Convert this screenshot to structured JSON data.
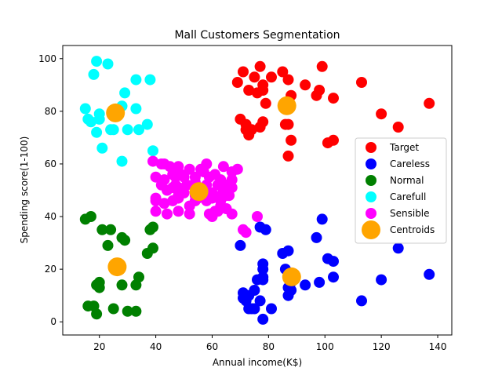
{
  "chart_data": {
    "type": "scatter",
    "title": "Mall Customers Segmentation",
    "xlabel": "Annual income(K$)",
    "ylabel": "Spending score(1-100)",
    "xlim": [
      7,
      145
    ],
    "ylim": [
      -5,
      105
    ],
    "xticks": [
      20,
      40,
      60,
      80,
      100,
      120,
      140
    ],
    "yticks": [
      0,
      20,
      40,
      60,
      80,
      100
    ],
    "grid": false,
    "legend": "right",
    "series": [
      {
        "name": "Target",
        "color": "#ff0000",
        "points": [
          [
            69,
            91
          ],
          [
            71,
            95
          ],
          [
            72,
            75
          ],
          [
            73,
            71
          ],
          [
            73,
            88
          ],
          [
            74,
            73
          ],
          [
            75,
            93
          ],
          [
            76,
            87
          ],
          [
            77,
            97
          ],
          [
            77,
            74
          ],
          [
            78,
            90
          ],
          [
            78,
            88
          ],
          [
            78,
            76
          ],
          [
            79,
            83
          ],
          [
            81,
            93
          ],
          [
            85,
            95
          ],
          [
            86,
            75
          ],
          [
            87,
            92
          ],
          [
            87,
            63
          ],
          [
            87,
            75
          ],
          [
            88,
            86
          ],
          [
            88,
            69
          ],
          [
            93,
            90
          ],
          [
            97,
            86
          ],
          [
            98,
            88
          ],
          [
            99,
            97
          ],
          [
            101,
            68
          ],
          [
            103,
            85
          ],
          [
            103,
            69
          ],
          [
            113,
            91
          ],
          [
            120,
            79
          ],
          [
            126,
            74
          ],
          [
            137,
            83
          ],
          [
            70,
            77
          ],
          [
            72,
            73
          ]
        ]
      },
      {
        "name": "Careless",
        "color": "#0000ff",
        "points": [
          [
            70,
            29
          ],
          [
            71,
            11
          ],
          [
            71,
            9
          ],
          [
            72,
            8
          ],
          [
            73,
            5
          ],
          [
            73,
            10
          ],
          [
            74,
            5
          ],
          [
            75,
            12
          ],
          [
            76,
            16
          ],
          [
            77,
            8
          ],
          [
            77,
            36
          ],
          [
            78,
            1
          ],
          [
            78,
            16
          ],
          [
            78,
            22
          ],
          [
            78,
            17
          ],
          [
            78,
            20
          ],
          [
            79,
            35
          ],
          [
            81,
            5
          ],
          [
            85,
            26
          ],
          [
            86,
            20
          ],
          [
            87,
            27
          ],
          [
            87,
            13
          ],
          [
            87,
            10
          ],
          [
            88,
            15
          ],
          [
            88,
            12
          ],
          [
            93,
            14
          ],
          [
            97,
            32
          ],
          [
            98,
            15
          ],
          [
            99,
            39
          ],
          [
            101,
            24
          ],
          [
            103,
            17
          ],
          [
            103,
            23
          ],
          [
            113,
            8
          ],
          [
            120,
            16
          ],
          [
            126,
            28
          ],
          [
            137,
            18
          ],
          [
            75,
            5
          ]
        ]
      },
      {
        "name": "Normal",
        "color": "#008000",
        "points": [
          [
            15,
            39
          ],
          [
            16,
            6
          ],
          [
            17,
            40
          ],
          [
            18,
            6
          ],
          [
            19,
            3
          ],
          [
            19,
            14
          ],
          [
            20,
            15
          ],
          [
            20,
            13
          ],
          [
            21,
            35
          ],
          [
            23,
            29
          ],
          [
            24,
            35
          ],
          [
            25,
            5
          ],
          [
            28,
            14
          ],
          [
            28,
            32
          ],
          [
            29,
            31
          ],
          [
            30,
            4
          ],
          [
            33,
            4
          ],
          [
            33,
            14
          ],
          [
            34,
            17
          ],
          [
            37,
            26
          ],
          [
            38,
            35
          ],
          [
            39,
            36
          ],
          [
            39,
            28
          ]
        ]
      },
      {
        "name": "Carefull",
        "color": "#00ffff",
        "points": [
          [
            15,
            81
          ],
          [
            16,
            77
          ],
          [
            17,
            76
          ],
          [
            18,
            94
          ],
          [
            19,
            99
          ],
          [
            19,
            72
          ],
          [
            20,
            77
          ],
          [
            20,
            79
          ],
          [
            21,
            66
          ],
          [
            23,
            98
          ],
          [
            24,
            73
          ],
          [
            25,
            73
          ],
          [
            28,
            82
          ],
          [
            28,
            61
          ],
          [
            29,
            87
          ],
          [
            30,
            73
          ],
          [
            33,
            81
          ],
          [
            33,
            92
          ],
          [
            34,
            73
          ],
          [
            37,
            75
          ],
          [
            38,
            92
          ],
          [
            39,
            65
          ]
        ]
      },
      {
        "name": "Sensible",
        "color": "#ff00ff",
        "points": [
          [
            39,
            61
          ],
          [
            40,
            55
          ],
          [
            40,
            47
          ],
          [
            40,
            42
          ],
          [
            42,
            52
          ],
          [
            42,
            60
          ],
          [
            43,
            54
          ],
          [
            43,
            60
          ],
          [
            43,
            45
          ],
          [
            44,
            41
          ],
          [
            44,
            50
          ],
          [
            46,
            46
          ],
          [
            46,
            51
          ],
          [
            46,
            56
          ],
          [
            47,
            55
          ],
          [
            47,
            52
          ],
          [
            48,
            59
          ],
          [
            48,
            51
          ],
          [
            48,
            47
          ],
          [
            48,
            42
          ],
          [
            49,
            56
          ],
          [
            49,
            50
          ],
          [
            50,
            49
          ],
          [
            50,
            55
          ],
          [
            51,
            52
          ],
          [
            52,
            41
          ],
          [
            52,
            58
          ],
          [
            54,
            46
          ],
          [
            54,
            55
          ],
          [
            54,
            48
          ],
          [
            54,
            53
          ],
          [
            57,
            51
          ],
          [
            57,
            57
          ],
          [
            58,
            60
          ],
          [
            58,
            46
          ],
          [
            59,
            55
          ],
          [
            59,
            41
          ],
          [
            60,
            49
          ],
          [
            60,
            40
          ],
          [
            61,
            42
          ],
          [
            62,
            52
          ],
          [
            62,
            42
          ],
          [
            63,
            54
          ],
          [
            63,
            46
          ],
          [
            63,
            48
          ],
          [
            64,
            59
          ],
          [
            64,
            50
          ],
          [
            65,
            43
          ],
          [
            65,
            48
          ],
          [
            67,
            51
          ],
          [
            67,
            54
          ],
          [
            67,
            41
          ],
          [
            67,
            57
          ],
          [
            69,
            58
          ],
          [
            71,
            35
          ],
          [
            72,
            34
          ],
          [
            76,
            40
          ],
          [
            40,
            46
          ],
          [
            45,
            59
          ],
          [
            56,
            58
          ],
          [
            60,
            47
          ],
          [
            63,
            44
          ],
          [
            66,
            48
          ],
          [
            55,
            47
          ],
          [
            52,
            44
          ],
          [
            48,
            48
          ],
          [
            58,
            52
          ],
          [
            61,
            56
          ],
          [
            65,
            52
          ]
        ]
      },
      {
        "name": "Centroids",
        "color": "#ffa500",
        "points": [
          [
            86.5,
            82.1
          ],
          [
            88.2,
            17.1
          ],
          [
            26.3,
            20.9
          ],
          [
            25.7,
            79.4
          ],
          [
            55.3,
            49.5
          ]
        ]
      }
    ]
  }
}
